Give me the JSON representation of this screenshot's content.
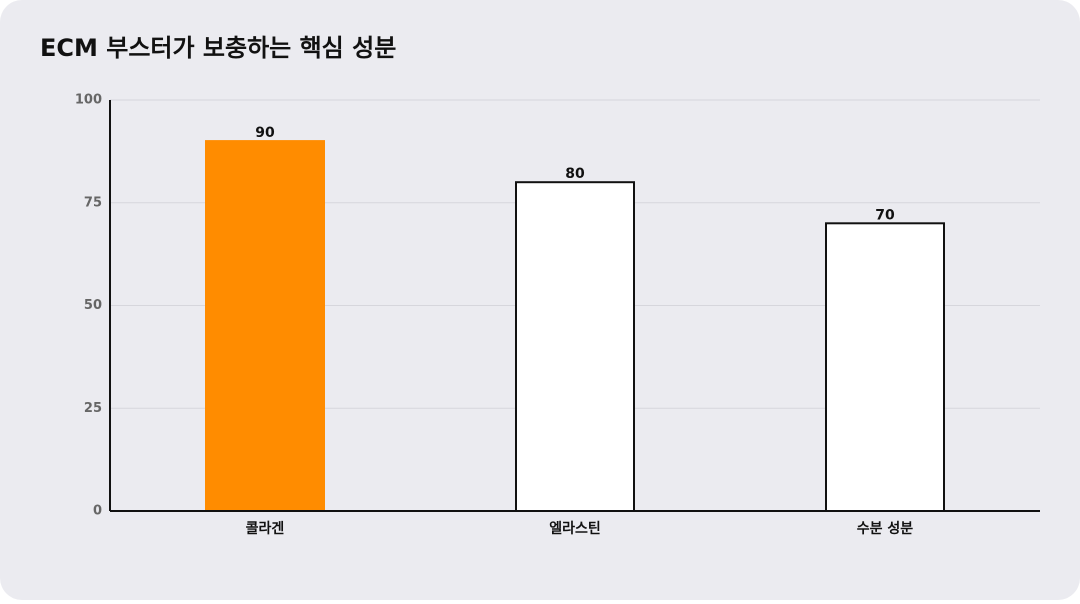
{
  "chart_data": {
    "type": "bar",
    "title": "ECM 부스터가 보충하는 핵심 성분",
    "categories": [
      "콜라겐",
      "엘라스틴",
      "수분 성분"
    ],
    "values": [
      90,
      80,
      70
    ],
    "colors": [
      "#ff8c00",
      "#ffffff",
      "#ffffff"
    ],
    "edge_colors": [
      "#ff8c00",
      "#111111",
      "#111111"
    ],
    "ylim": [
      0,
      100
    ],
    "yticks": [
      0,
      25,
      50,
      75,
      100
    ],
    "grid": true
  }
}
